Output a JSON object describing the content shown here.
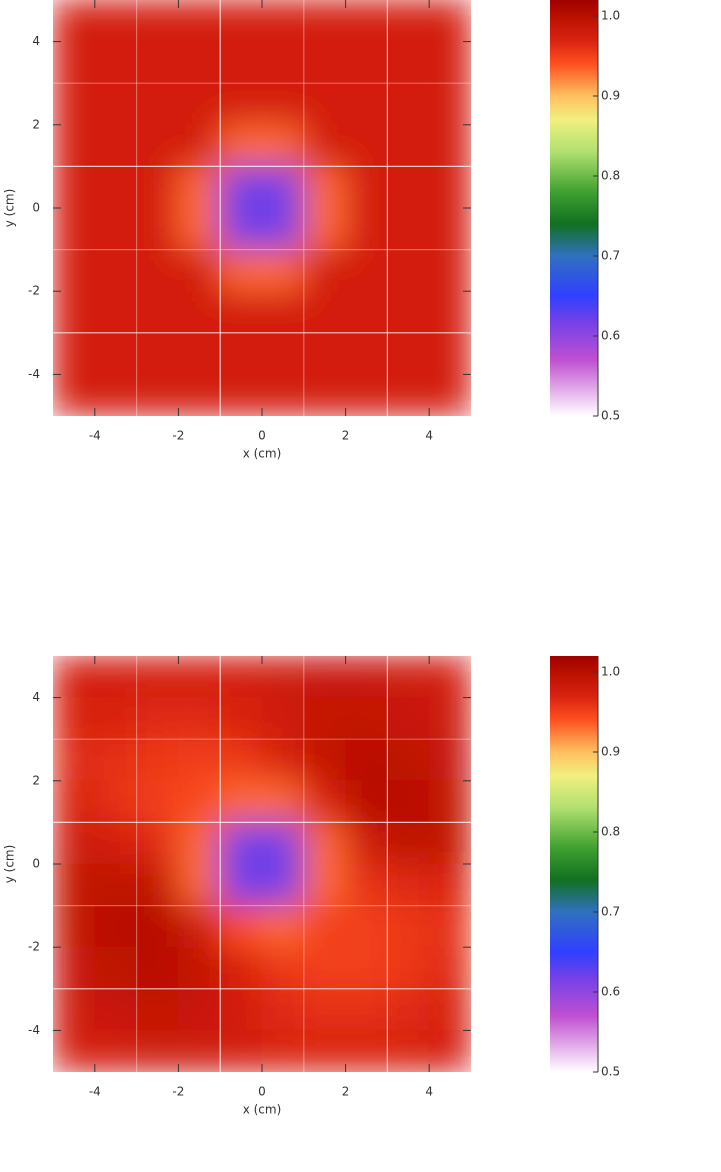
{
  "chart_data": [
    {
      "type": "heatmap",
      "xlabel": "x (cm)",
      "ylabel": "y (cm)",
      "xlim": [
        -5,
        5
      ],
      "ylim": [
        -5,
        5
      ],
      "xticks": [
        -4,
        -2,
        0,
        2,
        4
      ],
      "yticks": [
        -4,
        -2,
        0,
        2,
        4
      ],
      "xgrid": [
        -3,
        -1,
        1,
        3
      ],
      "ygrid": [
        -3,
        -1,
        1,
        3
      ],
      "zlim": [
        0.5,
        1.02
      ],
      "zticks": [
        0.5,
        0.6,
        0.7,
        0.8,
        0.9,
        {
          "value": 1,
          "label": "1.0"
        }
      ],
      "colorscale": [
        [
          0.5,
          "#ffffff"
        ],
        [
          0.57,
          "#c050d0"
        ],
        [
          0.62,
          "#7040e8"
        ],
        [
          0.65,
          "#3040ff"
        ],
        [
          0.7,
          "#3070c0"
        ],
        [
          0.74,
          "#107020"
        ],
        [
          0.78,
          "#40a030"
        ],
        [
          0.83,
          "#b0e070"
        ],
        [
          0.87,
          "#f0f080"
        ],
        [
          0.9,
          "#ffc060"
        ],
        [
          0.94,
          "#ff5020"
        ],
        [
          0.97,
          "#d82210"
        ],
        [
          1.0,
          "#b81000"
        ],
        [
          1.02,
          "#a00000"
        ]
      ],
      "z": [
        [
          0.975,
          0.975,
          0.975,
          0.975,
          0.975,
          0.975,
          0.975,
          0.975,
          0.975,
          0.975
        ],
        [
          0.975,
          0.975,
          0.975,
          0.975,
          0.975,
          0.975,
          0.975,
          0.975,
          0.975,
          0.975
        ],
        [
          0.975,
          0.975,
          0.975,
          0.975,
          0.975,
          0.975,
          0.975,
          0.975,
          0.975,
          0.975
        ],
        [
          0.975,
          0.975,
          0.975,
          0.975,
          0.93,
          0.93,
          0.975,
          0.975,
          0.975,
          0.975
        ],
        [
          0.975,
          0.975,
          0.975,
          0.93,
          0.62,
          0.62,
          0.93,
          0.975,
          0.975,
          0.975
        ],
        [
          0.975,
          0.975,
          0.975,
          0.93,
          0.62,
          0.62,
          0.93,
          0.975,
          0.975,
          0.975
        ],
        [
          0.975,
          0.975,
          0.975,
          0.975,
          0.93,
          0.93,
          0.975,
          0.975,
          0.975,
          0.975
        ],
        [
          0.975,
          0.975,
          0.975,
          0.975,
          0.975,
          0.975,
          0.975,
          0.975,
          0.975,
          0.975
        ],
        [
          0.975,
          0.975,
          0.975,
          0.975,
          0.975,
          0.975,
          0.975,
          0.975,
          0.975,
          0.975
        ],
        [
          0.975,
          0.975,
          0.975,
          0.975,
          0.975,
          0.975,
          0.975,
          0.975,
          0.975,
          0.975
        ]
      ]
    },
    {
      "type": "heatmap",
      "xlabel": "x (cm)",
      "ylabel": "y (cm)",
      "xlim": [
        -5,
        5
      ],
      "ylim": [
        -5,
        5
      ],
      "xticks": [
        -4,
        -2,
        0,
        2,
        4
      ],
      "yticks": [
        -4,
        -2,
        0,
        2,
        4
      ],
      "xgrid": [
        -3,
        -1,
        1,
        3
      ],
      "ygrid": [
        -3,
        -1,
        1,
        3
      ],
      "zlim": [
        0.5,
        1.02
      ],
      "zticks": [
        0.5,
        0.6,
        0.7,
        0.8,
        0.9,
        {
          "value": 1,
          "label": "1.0"
        }
      ],
      "colorscale": [
        [
          0.5,
          "#ffffff"
        ],
        [
          0.57,
          "#c050d0"
        ],
        [
          0.62,
          "#7040e8"
        ],
        [
          0.65,
          "#3040ff"
        ],
        [
          0.7,
          "#3070c0"
        ],
        [
          0.74,
          "#107020"
        ],
        [
          0.78,
          "#40a030"
        ],
        [
          0.83,
          "#b0e070"
        ],
        [
          0.87,
          "#f0f080"
        ],
        [
          0.9,
          "#ffc060"
        ],
        [
          0.94,
          "#ff5020"
        ],
        [
          0.97,
          "#d82210"
        ],
        [
          1.0,
          "#b81000"
        ],
        [
          1.02,
          "#a00000"
        ]
      ],
      "z": [
        [
          0.975,
          0.975,
          0.975,
          0.975,
          0.975,
          0.98,
          0.985,
          0.985,
          0.98,
          0.975
        ],
        [
          0.97,
          0.97,
          0.965,
          0.965,
          0.97,
          0.98,
          0.99,
          0.99,
          0.985,
          0.98
        ],
        [
          0.965,
          0.96,
          0.955,
          0.95,
          0.955,
          0.97,
          0.99,
          1.0,
          0.995,
          0.985
        ],
        [
          0.97,
          0.96,
          0.95,
          0.945,
          0.93,
          0.93,
          0.97,
          1.0,
          1.0,
          0.99
        ],
        [
          0.98,
          0.975,
          0.965,
          0.93,
          0.62,
          0.62,
          0.93,
          0.98,
          0.995,
          0.99
        ],
        [
          0.99,
          0.995,
          0.99,
          0.93,
          0.62,
          0.62,
          0.93,
          0.96,
          0.965,
          0.97
        ],
        [
          0.99,
          1.0,
          1.0,
          0.98,
          0.94,
          0.93,
          0.95,
          0.95,
          0.955,
          0.96
        ],
        [
          0.985,
          0.995,
          1.0,
          0.99,
          0.97,
          0.955,
          0.95,
          0.95,
          0.955,
          0.965
        ],
        [
          0.98,
          0.985,
          0.99,
          0.985,
          0.975,
          0.965,
          0.96,
          0.96,
          0.965,
          0.97
        ],
        [
          0.975,
          0.975,
          0.98,
          0.98,
          0.975,
          0.97,
          0.97,
          0.97,
          0.97,
          0.975
        ]
      ]
    }
  ]
}
